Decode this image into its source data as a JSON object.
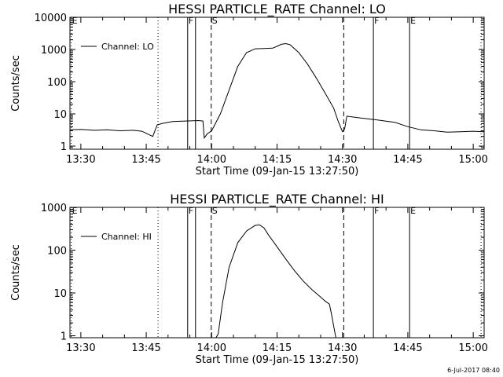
{
  "footer": {
    "timestamp": "6-Jul-2017 08:40"
  },
  "chart_data": [
    {
      "type": "line",
      "title": "HESSI PARTICLE_RATE Channel: LO",
      "xlabel": "Start Time (09-Jan-15 13:27:50)",
      "ylabel": "Counts/sec",
      "yscale": "log",
      "xlim_minutes": [
        -2.5,
        92.5
      ],
      "ylim": [
        0.8,
        10000
      ],
      "x_tick_labels": [
        "13:30",
        "13:45",
        "14:00",
        "14:15",
        "14:30",
        "14:45",
        "15:00"
      ],
      "x_tick_values_minutes": [
        0,
        15,
        30,
        45,
        60,
        75,
        90
      ],
      "y_tick_labels": [
        "1",
        "10",
        "100",
        "1000",
        "10000"
      ],
      "y_tick_values": [
        1,
        10,
        100,
        1000,
        10000
      ],
      "legend": {
        "label": "Channel: LO",
        "placement": "top-left"
      },
      "markers": [
        {
          "label": "E",
          "x": -2.2,
          "style": "dotted",
          "show_label": true
        },
        {
          "label": "",
          "x": 17.7,
          "style": "dotted",
          "show_label": false
        },
        {
          "label": "F",
          "x": 24.5,
          "style": "solid",
          "show_label": true
        },
        {
          "label": "",
          "x": 26.3,
          "style": "solid",
          "show_label": false
        },
        {
          "label": "S",
          "x": 29.9,
          "style": "dashed",
          "show_label": true
        },
        {
          "label": "",
          "x": 60.3,
          "style": "dashed",
          "show_label": false
        },
        {
          "label": "F",
          "x": 67.1,
          "style": "solid",
          "show_label": true
        },
        {
          "label": "E",
          "x": 75.4,
          "style": "solid",
          "show_label": true
        },
        {
          "label": "",
          "x": 91.8,
          "style": "dotted",
          "show_label": false
        }
      ],
      "series": [
        {
          "x": [
            -2.5,
            0,
            3,
            6,
            9,
            12,
            14,
            16.5,
            17.5,
            18.5,
            21,
            24,
            27,
            28,
            28.3,
            29,
            30,
            32,
            34,
            36,
            38,
            40,
            42,
            44,
            45,
            46,
            47,
            48,
            50,
            52,
            54,
            56,
            58,
            59,
            60,
            60.5,
            61,
            64,
            68,
            72,
            75,
            78,
            81,
            84,
            87,
            90,
            92.5
          ],
          "y": [
            3.2,
            3.3,
            3.1,
            3.2,
            3.0,
            3.1,
            2.9,
            2.0,
            4.5,
            5.0,
            5.8,
            6.0,
            6.2,
            6.0,
            1.8,
            2.4,
            3.0,
            10,
            55,
            300,
            800,
            1050,
            1070,
            1100,
            1250,
            1450,
            1520,
            1400,
            800,
            350,
            130,
            45,
            15,
            6,
            2.8,
            3.4,
            8.5,
            7.5,
            6.5,
            5.5,
            4.0,
            3.2,
            3.0,
            2.7,
            2.8,
            2.9,
            2.8
          ]
        }
      ]
    },
    {
      "type": "line",
      "title": "HESSI PARTICLE_RATE Channel: HI",
      "xlabel": "Start Time (09-Jan-15 13:27:50)",
      "ylabel": "Counts/sec",
      "yscale": "log",
      "xlim_minutes": [
        -2.5,
        92.5
      ],
      "ylim": [
        0.9,
        1000
      ],
      "x_tick_labels": [
        "13:30",
        "13:45",
        "14:00",
        "14:15",
        "14:30",
        "14:45",
        "15:00"
      ],
      "x_tick_values_minutes": [
        0,
        15,
        30,
        45,
        60,
        75,
        90
      ],
      "y_tick_labels": [
        "1",
        "10",
        "100",
        "1000"
      ],
      "y_tick_values": [
        1,
        10,
        100,
        1000
      ],
      "legend": {
        "label": "Channel: HI",
        "placement": "top-left"
      },
      "markers": [
        {
          "label": "E",
          "x": -2.2,
          "style": "dotted",
          "show_label": true
        },
        {
          "label": "",
          "x": 17.7,
          "style": "dotted",
          "show_label": false
        },
        {
          "label": "F",
          "x": 24.5,
          "style": "solid",
          "show_label": true
        },
        {
          "label": "",
          "x": 26.3,
          "style": "solid",
          "show_label": false
        },
        {
          "label": "S",
          "x": 29.9,
          "style": "dashed",
          "show_label": true
        },
        {
          "label": "",
          "x": 60.3,
          "style": "dashed",
          "show_label": false
        },
        {
          "label": "F",
          "x": 67.1,
          "style": "solid",
          "show_label": true
        },
        {
          "label": "E",
          "x": 75.4,
          "style": "solid",
          "show_label": true
        },
        {
          "label": "",
          "x": 91.8,
          "style": "dotted",
          "show_label": false
        }
      ],
      "series": [
        {
          "x": [
            31.0,
            31.5,
            32.5,
            34,
            36,
            38,
            40,
            41,
            42,
            43,
            45,
            47,
            49,
            51,
            53,
            55,
            56,
            57,
            57.5,
            58.2,
            58.5
          ],
          "y": [
            0.9,
            1.1,
            6,
            40,
            150,
            280,
            380,
            390,
            330,
            230,
            120,
            62,
            33,
            19,
            12,
            8,
            6.5,
            5.5,
            3.2,
            1.3,
            0.9
          ]
        }
      ]
    }
  ]
}
